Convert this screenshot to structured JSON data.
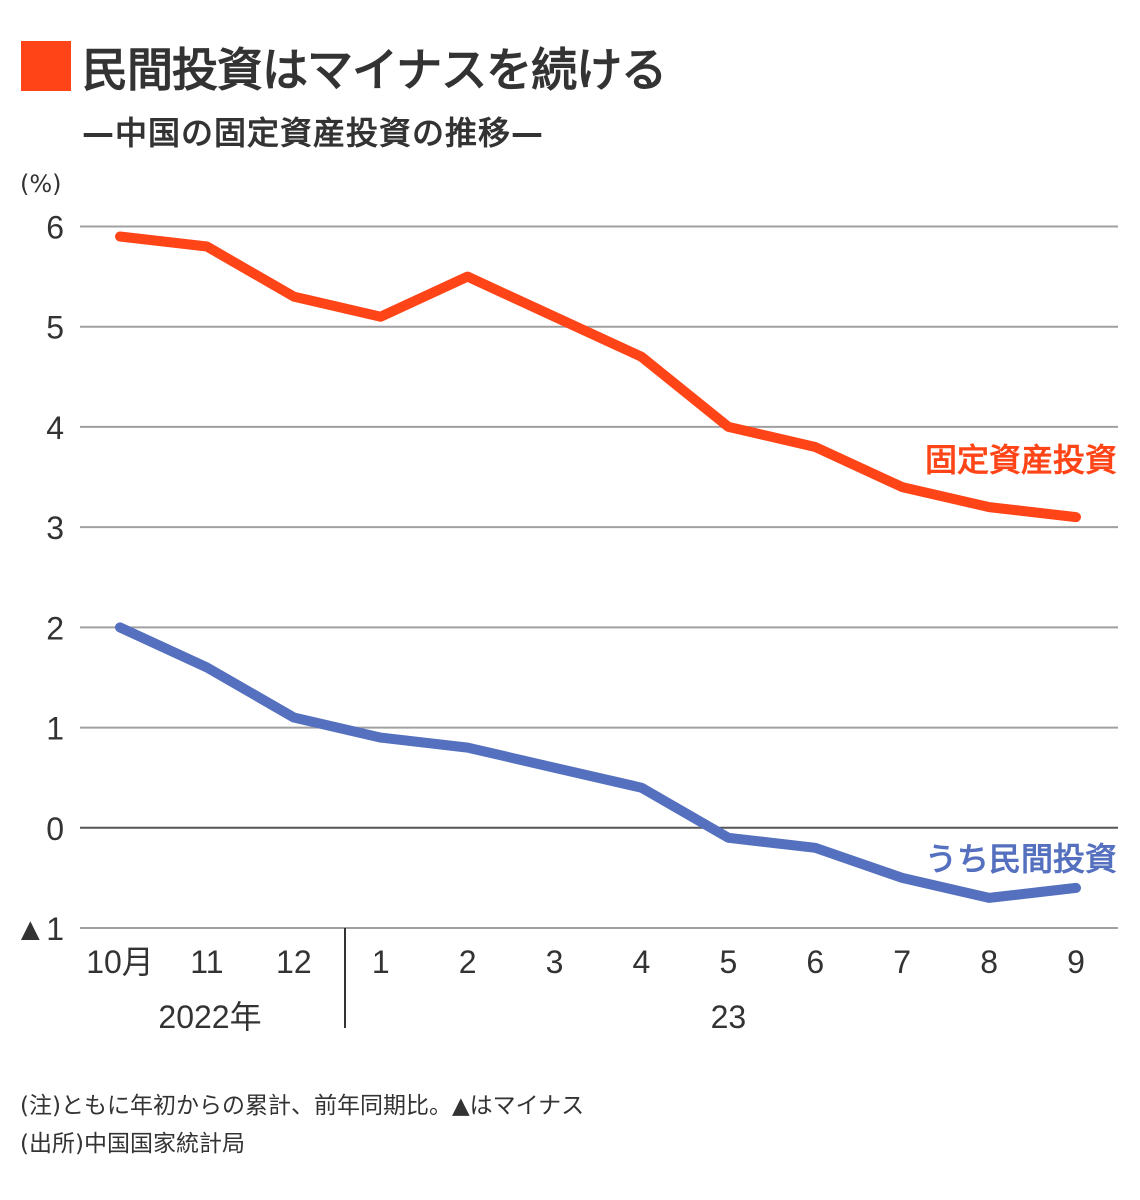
{
  "title": "民間投資はマイナスを続ける",
  "subtitle": "—中国の固定資産投資の推移—",
  "colors": {
    "accent": "#ff4517",
    "fixed": "#ff4517",
    "private": "#5470be",
    "grid": "#a0a0a0",
    "zero": "#555555",
    "text": "#333333"
  },
  "chart_data": {
    "type": "line",
    "title": "民間投資はマイナスを続ける",
    "subtitle": "—中国の固定資産投資の推移—",
    "ylabel": "(%)",
    "xlabel": "",
    "ylim": [
      -1,
      6
    ],
    "yticks": [
      6,
      5,
      4,
      3,
      2,
      1,
      0,
      -1
    ],
    "ytick_labels": [
      "6",
      "5",
      "4",
      "3",
      "2",
      "1",
      "0",
      "▲1"
    ],
    "grid": true,
    "categories": [
      "10月",
      "11",
      "12",
      "1",
      "2",
      "3",
      "4",
      "5",
      "6",
      "7",
      "8",
      "9"
    ],
    "year_groups": [
      {
        "label": "2022年",
        "start": 0,
        "end": 2
      },
      {
        "label": "23",
        "start": 3,
        "end": 11
      }
    ],
    "series": [
      {
        "name": "固定資産投資",
        "color": "#ff4517",
        "values": [
          5.9,
          5.8,
          5.3,
          5.1,
          5.5,
          5.1,
          4.7,
          4.0,
          3.8,
          3.4,
          3.2,
          3.1
        ]
      },
      {
        "name": "うち民間投資",
        "color": "#5470be",
        "values": [
          2.0,
          1.6,
          1.1,
          0.9,
          0.8,
          0.6,
          0.4,
          -0.1,
          -0.2,
          -0.5,
          -0.7,
          -0.6
        ]
      }
    ]
  },
  "notes": {
    "note": "(注)ともに年初からの累計、前年同期比。▲はマイナス",
    "source": "(出所)中国国家統計局"
  }
}
